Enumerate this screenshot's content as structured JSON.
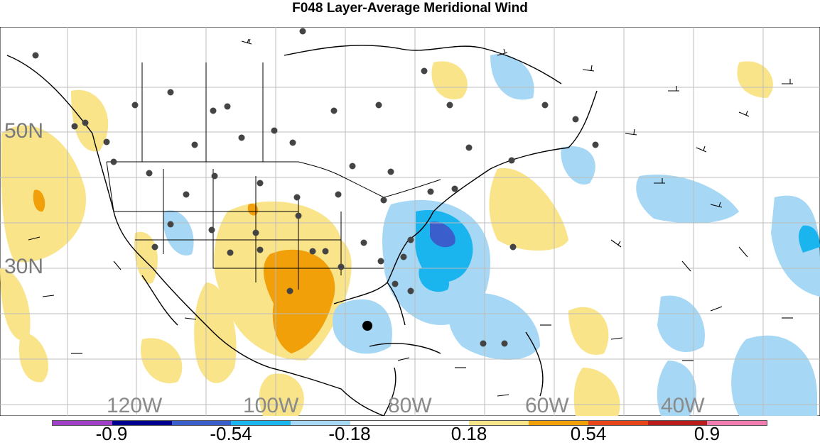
{
  "title": "F048 Layer-Average Meridional Wind",
  "lat_labels": [
    "50N",
    "30N"
  ],
  "lon_labels": [
    "120W",
    "100W",
    "80W",
    "60W",
    "40W"
  ],
  "colorbar": {
    "colors": [
      "#a040c8",
      "#00008c",
      "#3a5fcd",
      "#1ab4ee",
      "#a6d8f5",
      "#ffffff",
      "#ffffff",
      "#f9e48a",
      "#f1a00a",
      "#e8461a",
      "#b81c1c",
      "#f07cb0"
    ],
    "labels": [
      "-0.9",
      "-0.54",
      "-0.18",
      "0.18",
      "0.54",
      "0.9"
    ]
  }
}
